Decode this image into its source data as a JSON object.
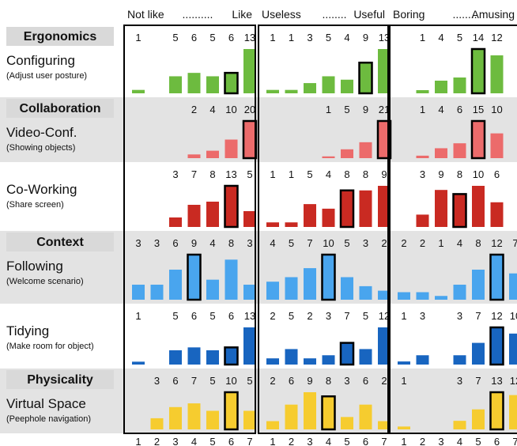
{
  "chart_data": {
    "type": "bar",
    "column_headers": [
      {
        "left": "Not like",
        "dots": "..........",
        "right": "Like"
      },
      {
        "left": "Useless",
        "dots": "........",
        "right": "Useful"
      },
      {
        "left": "Boring",
        "dots": "........",
        "right": "Amusing"
      }
    ],
    "x_ticks": [
      "1",
      "2",
      "3",
      "4",
      "5",
      "6",
      "7"
    ],
    "sections": [
      {
        "header": "Ergonomics",
        "header_color": "#d9d9d9",
        "rows": [
          {
            "title": "Configuring",
            "subtitle": "(Adjust user posture)",
            "color": "#6dbb3f",
            "bg": "#ffffff",
            "panels": [
              {
                "values": [
                  1,
                  0,
                  5,
                  6,
                  5,
                  6,
                  13
                ],
                "highlight": 6
              },
              {
                "values": [
                  1,
                  1,
                  3,
                  5,
                  4,
                  9,
                  13
                ],
                "highlight": 6
              },
              {
                "values": [
                  0,
                  1,
                  4,
                  5,
                  14,
                  12,
                  0
                ],
                "highlight": 5
              }
            ]
          }
        ]
      },
      {
        "header": "Collaboration",
        "header_color": "#d9d9d9",
        "rows": [
          {
            "title": "Video-Conf.",
            "subtitle": "(Showing objects)",
            "color": "#ec6b6b",
            "bg": "#e3e3e3",
            "panels": [
              {
                "values": [
                  0,
                  0,
                  0,
                  2,
                  4,
                  10,
                  20
                ],
                "highlight": 7
              },
              {
                "values": [
                  0,
                  0,
                  0,
                  1,
                  5,
                  9,
                  21
                ],
                "highlight": 7
              },
              {
                "values": [
                  0,
                  1,
                  4,
                  6,
                  15,
                  10,
                  0
                ],
                "highlight": 5
              }
            ]
          },
          {
            "title": "Co-Working",
            "subtitle": "(Share screen)",
            "color": "#c92a22",
            "bg": "#ffffff",
            "panels": [
              {
                "values": [
                  0,
                  0,
                  3,
                  7,
                  8,
                  13,
                  5
                ],
                "highlight": 6
              },
              {
                "values": [
                  1,
                  1,
                  5,
                  4,
                  8,
                  8,
                  9
                ],
                "highlight": 5
              },
              {
                "values": [
                  0,
                  3,
                  9,
                  8,
                  10,
                  6,
                  0
                ],
                "highlight": 4
              }
            ]
          }
        ]
      },
      {
        "header": "Context",
        "header_color": "#d9d9d9",
        "rows": [
          {
            "title": "Following",
            "subtitle": "(Welcome scenario)",
            "color": "#49a5ee",
            "bg": "#e3e3e3",
            "panels": [
              {
                "values": [
                  3,
                  3,
                  6,
                  9,
                  4,
                  8,
                  3
                ],
                "highlight": 4
              },
              {
                "values": [
                  4,
                  5,
                  7,
                  10,
                  5,
                  3,
                  2
                ],
                "highlight": 4
              },
              {
                "values": [
                  2,
                  2,
                  1,
                  4,
                  8,
                  12,
                  7
                ],
                "highlight": 6
              }
            ]
          },
          {
            "title": "Tidying",
            "subtitle": "(Make room for object)",
            "color": "#1865c0",
            "bg": "#ffffff",
            "panels": [
              {
                "values": [
                  1,
                  0,
                  5,
                  6,
                  5,
                  6,
                  13
                ],
                "highlight": 6
              },
              {
                "values": [
                  2,
                  5,
                  2,
                  3,
                  7,
                  5,
                  12
                ],
                "highlight": 5
              },
              {
                "values": [
                  1,
                  3,
                  0,
                  3,
                  7,
                  12,
                  10
                ],
                "highlight": 6
              }
            ]
          }
        ]
      },
      {
        "header": "Physicality",
        "header_color": "#d9d9d9",
        "rows": [
          {
            "title": "Virtual Space",
            "subtitle": "(Peephole navigation)",
            "color": "#f6cc2f",
            "bg": "#e3e3e3",
            "panels": [
              {
                "values": [
                  0,
                  3,
                  6,
                  7,
                  5,
                  10,
                  5
                ],
                "highlight": 6
              },
              {
                "values": [
                  2,
                  6,
                  9,
                  8,
                  3,
                  6,
                  2
                ],
                "highlight": 4
              },
              {
                "values": [
                  1,
                  0,
                  0,
                  3,
                  7,
                  13,
                  12
                ],
                "highlight": 6
              }
            ]
          }
        ]
      }
    ]
  }
}
